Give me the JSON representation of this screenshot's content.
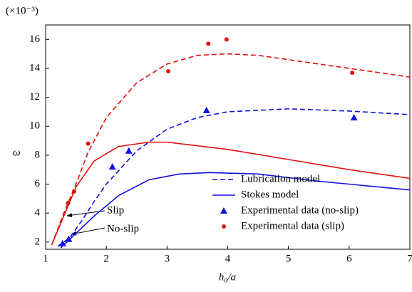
{
  "chart_data": {
    "type": "line",
    "multiplier_label": "(×10⁻³)",
    "xlabel": "h₀/a",
    "ylabel": "ω",
    "xlim": [
      1,
      7
    ],
    "ylim": [
      1.5,
      17
    ],
    "xticks": [
      1,
      2,
      3,
      4,
      5,
      6,
      7
    ],
    "yticks": [
      2,
      4,
      6,
      8,
      10,
      12,
      14,
      16
    ],
    "legend_position": "lower right",
    "annotations": [
      "Slip",
      "No-slip"
    ],
    "series": [
      {
        "name": "Lubrication model",
        "color": "#1010e0",
        "style": "dashed",
        "x": [
          1.2,
          1.4,
          1.6,
          1.8,
          2,
          2.5,
          3,
          3.5,
          4,
          5,
          6,
          7
        ],
        "y": [
          1.7,
          2.3,
          3.5,
          4.8,
          6,
          8.3,
          9.8,
          10.6,
          11,
          11.2,
          11.05,
          10.8
        ]
      },
      {
        "name": "Stokes model",
        "color": "#1010e0",
        "style": "solid",
        "x": [
          1.25,
          1.5,
          1.8,
          2.2,
          2.7,
          3.2,
          3.7,
          4.5,
          5.5,
          7
        ],
        "y": [
          1.6,
          2.6,
          3.8,
          5.2,
          6.3,
          6.7,
          6.8,
          6.7,
          6.2,
          5.6
        ]
      },
      {
        "name": "Experimental data (no-slip)",
        "color": "#1010e0",
        "style": "triangle",
        "x": [
          1.28,
          1.38,
          2.1,
          2.37,
          3.65,
          6.08
        ],
        "y": [
          1.9,
          2.2,
          7.2,
          8.3,
          11.1,
          10.6
        ]
      },
      {
        "name": "Experimental data (slip)",
        "color": "#e01010",
        "style": "circle",
        "x": [
          1.37,
          1.47,
          1.7,
          3.02,
          3.68,
          3.98,
          6.05
        ],
        "y": [
          4.7,
          5.5,
          8.8,
          13.8,
          15.7,
          16.0,
          13.7
        ]
      },
      {
        "name": "Lubrication model",
        "color": "#e01010",
        "style": "dashed",
        "x": [
          1.1,
          1.3,
          1.5,
          1.7,
          2,
          2.5,
          3,
          3.5,
          4,
          4.5,
          5,
          6,
          7
        ],
        "y": [
          1.8,
          4,
          6,
          8.2,
          10.6,
          13,
          14.3,
          14.9,
          15,
          14.9,
          14.6,
          14,
          13.4
        ]
      },
      {
        "name": "Stokes model",
        "color": "#e01010",
        "style": "solid",
        "x": [
          1.1,
          1.3,
          1.5,
          1.8,
          2.2,
          2.7,
          3,
          4,
          5,
          6,
          7
        ],
        "y": [
          1.8,
          3.8,
          5.8,
          7.6,
          8.6,
          8.9,
          8.9,
          8.4,
          7.7,
          7,
          6.4
        ]
      }
    ]
  }
}
